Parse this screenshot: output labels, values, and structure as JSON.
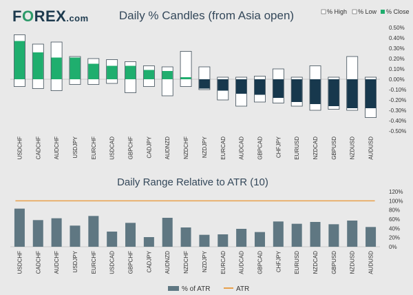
{
  "logo": {
    "text_before": "F",
    "text_o": "O",
    "text_after": "REX",
    "suffix": ".com"
  },
  "colors": {
    "background": "#e9e9e9",
    "green": "#1fae6e",
    "navy": "#17384d",
    "bar_gray": "#5f7782",
    "atr_line": "#e8a04a",
    "title": "#34485a"
  },
  "chart_data": [
    {
      "type": "bar",
      "title": "Daily % Candles (from Asia open)",
      "legend": [
        "% High",
        "% Low",
        "% Close"
      ],
      "legend_position": "top-right",
      "categories": [
        "USDCHF",
        "CADCHF",
        "AUDCHF",
        "USDJPY",
        "EURCHF",
        "USDCAD",
        "GBPCHF",
        "CADJPY",
        "AUDNZD",
        "NZDCHF",
        "NZDJPY",
        "EURCAD",
        "AUDCAD",
        "GBPCAD",
        "CHFJPY",
        "EURUSD",
        "NZDCAD",
        "GBPUSD",
        "NZDUSD",
        "AUDUSD"
      ],
      "series": [
        {
          "name": "% High",
          "values": [
            0.43,
            0.34,
            0.36,
            0.22,
            0.2,
            0.19,
            0.17,
            0.13,
            0.12,
            0.27,
            0.12,
            0.02,
            0.02,
            0.03,
            0.1,
            0.02,
            0.13,
            0.02,
            0.22,
            0.02
          ]
        },
        {
          "name": "% Low",
          "values": [
            -0.07,
            -0.09,
            -0.11,
            -0.05,
            -0.05,
            -0.04,
            -0.13,
            -0.07,
            -0.16,
            -0.07,
            -0.1,
            -0.2,
            -0.26,
            -0.22,
            -0.23,
            -0.26,
            -0.3,
            -0.29,
            -0.3,
            -0.37
          ]
        },
        {
          "name": "% Close",
          "values": [
            0.37,
            0.26,
            0.21,
            0.21,
            0.15,
            0.13,
            0.13,
            0.09,
            0.08,
            0.02,
            -0.09,
            -0.11,
            -0.14,
            -0.15,
            -0.18,
            -0.22,
            -0.24,
            -0.26,
            -0.28,
            -0.28
          ]
        }
      ],
      "ylim": [
        -0.5,
        0.5
      ],
      "yticks": [
        -0.5,
        -0.4,
        -0.3,
        -0.2,
        -0.1,
        0.0,
        0.1,
        0.2,
        0.3,
        0.4,
        0.5
      ],
      "ytick_labels": [
        "-0.50%",
        "-0.40%",
        "-0.30%",
        "-0.20%",
        "-0.10%",
        "0.00%",
        "0.10%",
        "0.20%",
        "0.30%",
        "0.40%",
        "0.50%"
      ],
      "grid": false
    },
    {
      "type": "bar",
      "title": "Daily Range Relative to ATR (10)",
      "legend": [
        "% of ATR",
        "ATR"
      ],
      "legend_position": "bottom",
      "categories": [
        "USDCHF",
        "CADCHF",
        "AUDCHF",
        "USDJPY",
        "EURCHF",
        "USDCAD",
        "GBPCHF",
        "CADJPY",
        "AUDNZD",
        "NZDCHF",
        "NZDJPY",
        "EURCAD",
        "AUDCAD",
        "GBPCAD",
        "CHFJPY",
        "EURUSD",
        "NZDCAD",
        "GBPUSD",
        "NZDUSD",
        "AUDUSD"
      ],
      "series": [
        {
          "name": "% of ATR",
          "values": [
            83,
            58,
            62,
            46,
            67,
            33,
            52,
            21,
            63,
            42,
            26,
            27,
            39,
            32,
            55,
            50,
            54,
            49,
            57,
            43
          ]
        },
        {
          "name": "ATR",
          "values": [
            100,
            100,
            100,
            100,
            100,
            100,
            100,
            100,
            100,
            100,
            100,
            100,
            100,
            100,
            100,
            100,
            100,
            100,
            100,
            100
          ]
        }
      ],
      "ylim": [
        0,
        120
      ],
      "yticks": [
        0,
        20,
        40,
        60,
        80,
        100,
        120
      ],
      "ytick_labels": [
        "0%",
        "20%",
        "40%",
        "60%",
        "80%",
        "100%",
        "120%"
      ],
      "grid": false
    }
  ]
}
